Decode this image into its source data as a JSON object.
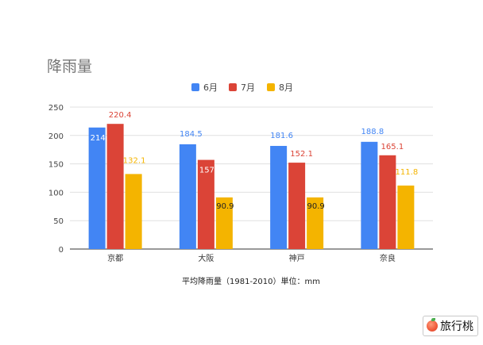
{
  "chart_data": {
    "type": "bar",
    "title": "降雨量",
    "xlabel": "平均降雨量（1981-2010）単位：mm",
    "ylabel": "",
    "ylim": [
      0,
      250
    ],
    "yticks": [
      0,
      50,
      100,
      150,
      200,
      250
    ],
    "categories": [
      "京都",
      "大阪",
      "神戸",
      "奈良"
    ],
    "series": [
      {
        "name": "6月",
        "color": "#4285f4",
        "values": [
          214,
          184.5,
          181.6,
          188.8
        ],
        "labels": [
          "214",
          "184.5",
          "181.6",
          "188.8"
        ]
      },
      {
        "name": "7月",
        "color": "#db4437",
        "values": [
          220.4,
          157,
          152.1,
          165.1
        ],
        "labels": [
          "220.4",
          "157",
          "152.1",
          "165.1"
        ]
      },
      {
        "name": "8月",
        "color": "#f4b400",
        "values": [
          132.1,
          90.9,
          90.9,
          111.8
        ],
        "labels": [
          "132.1",
          "90.9",
          "90.9",
          "111.8"
        ]
      }
    ],
    "legend_position": "top",
    "grid": true
  },
  "watermark": {
    "text": "旅行桃",
    "icon": "peach-icon"
  }
}
